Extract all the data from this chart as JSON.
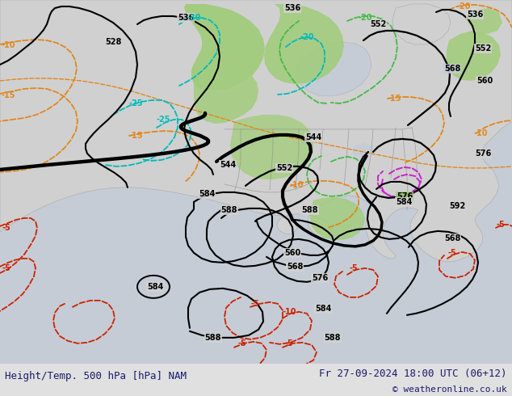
{
  "title_left": "Height/Temp. 500 hPa [hPa] NAM",
  "title_right": "Fr 27-09-2024 18:00 UTC (06+12)",
  "copyright": "© weatheronline.co.uk",
  "bg_main": "#d8d8d8",
  "bg_ocean": "#c8cdd5",
  "bg_land": "#d2d2d2",
  "green_fill": "#a8d878",
  "title_color": "#1a1a6e",
  "bottom_bg": "#e0e0e0",
  "figsize": [
    6.34,
    4.9
  ],
  "dpi": 100
}
